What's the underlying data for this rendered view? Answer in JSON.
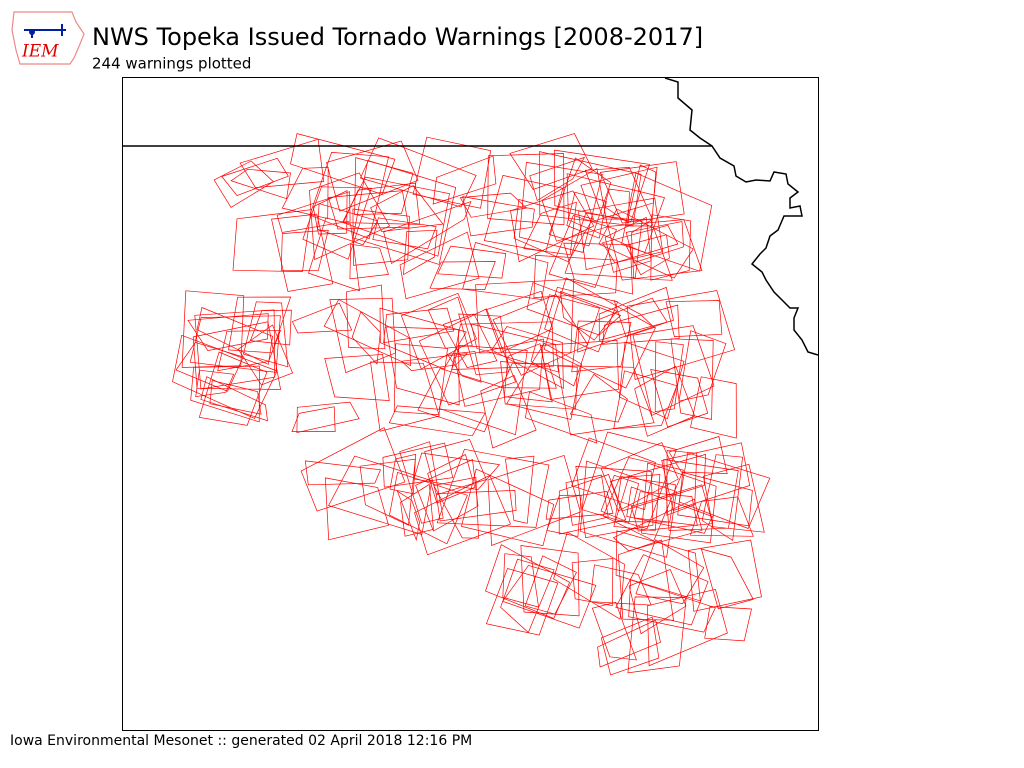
{
  "header": {
    "logo_text": "IEM",
    "title": "NWS Topeka Issued Tornado Warnings [2008-2017]",
    "subtitle": "244 warnings plotted"
  },
  "footer": {
    "text": "Iowa Environmental Mesonet :: generated 02 April 2018 12:16 PM"
  }
}
